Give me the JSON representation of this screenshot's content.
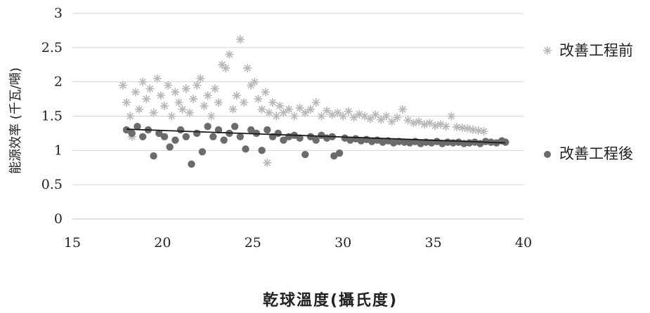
{
  "chart_data": {
    "type": "scatter",
    "title": "",
    "xlabel": "乾球溫度(攝氏度)",
    "ylabel": "能源效率 (千瓦/噸)",
    "xlim": [
      15,
      40
    ],
    "ylim": [
      0,
      3
    ],
    "xticks": [
      "15",
      "20",
      "25",
      "30",
      "35",
      "40"
    ],
    "yticks": [
      "0",
      "0.5",
      "1",
      "1.5",
      "2",
      "2.5",
      "3"
    ],
    "grid": "horizontal",
    "legend_position": "right",
    "series": [
      {
        "name": "改善工程前",
        "marker": "star",
        "color": "#b8b8b8",
        "points": [
          [
            17.8,
            1.95
          ],
          [
            18.0,
            1.7
          ],
          [
            18.2,
            1.5
          ],
          [
            18.3,
            1.2
          ],
          [
            18.5,
            1.85
          ],
          [
            18.7,
            1.6
          ],
          [
            18.9,
            2.0
          ],
          [
            19.1,
            1.75
          ],
          [
            19.3,
            1.9
          ],
          [
            19.5,
            1.55
          ],
          [
            19.7,
            2.05
          ],
          [
            19.9,
            1.8
          ],
          [
            20.1,
            1.65
          ],
          [
            20.3,
            1.95
          ],
          [
            20.5,
            1.5
          ],
          [
            20.7,
            1.85
          ],
          [
            20.9,
            1.7
          ],
          [
            21.1,
            1.6
          ],
          [
            21.3,
            1.9
          ],
          [
            21.5,
            1.55
          ],
          [
            21.7,
            1.75
          ],
          [
            21.9,
            1.95
          ],
          [
            22.1,
            2.05
          ],
          [
            22.3,
            1.65
          ],
          [
            22.5,
            1.8
          ],
          [
            22.7,
            1.5
          ],
          [
            22.9,
            1.9
          ],
          [
            23.1,
            1.7
          ],
          [
            23.3,
            2.25
          ],
          [
            23.5,
            2.2
          ],
          [
            23.7,
            2.4
          ],
          [
            23.9,
            1.6
          ],
          [
            24.1,
            1.8
          ],
          [
            24.3,
            2.62
          ],
          [
            24.5,
            1.7
          ],
          [
            24.7,
            2.2
          ],
          [
            24.9,
            1.95
          ],
          [
            25.1,
            2.0
          ],
          [
            25.3,
            1.75
          ],
          [
            25.5,
            1.6
          ],
          [
            25.7,
            1.85
          ],
          [
            25.9,
            1.55
          ],
          [
            25.8,
            0.82
          ],
          [
            26.1,
            1.7
          ],
          [
            26.3,
            1.5
          ],
          [
            26.5,
            1.65
          ],
          [
            26.7,
            1.55
          ],
          [
            27.0,
            1.6
          ],
          [
            27.3,
            1.5
          ],
          [
            27.6,
            1.62
          ],
          [
            27.9,
            1.55
          ],
          [
            28.2,
            1.6
          ],
          [
            28.5,
            1.7
          ],
          [
            28.8,
            1.5
          ],
          [
            29.1,
            1.58
          ],
          [
            29.4,
            1.52
          ],
          [
            29.7,
            1.55
          ],
          [
            30.0,
            1.5
          ],
          [
            30.3,
            1.57
          ],
          [
            30.6,
            1.48
          ],
          [
            30.9,
            1.53
          ],
          [
            31.2,
            1.5
          ],
          [
            31.5,
            1.46
          ],
          [
            31.8,
            1.52
          ],
          [
            32.1,
            1.45
          ],
          [
            32.4,
            1.5
          ],
          [
            32.7,
            1.42
          ],
          [
            33.0,
            1.48
          ],
          [
            33.3,
            1.6
          ],
          [
            33.6,
            1.44
          ],
          [
            33.9,
            1.4
          ],
          [
            34.2,
            1.42
          ],
          [
            34.5,
            1.38
          ],
          [
            34.8,
            1.4
          ],
          [
            35.1,
            1.36
          ],
          [
            35.4,
            1.38
          ],
          [
            35.7,
            1.35
          ],
          [
            36.0,
            1.5
          ],
          [
            36.3,
            1.34
          ],
          [
            36.6,
            1.33
          ],
          [
            36.9,
            1.32
          ],
          [
            37.2,
            1.3
          ],
          [
            37.5,
            1.29
          ],
          [
            37.8,
            1.28
          ]
        ]
      },
      {
        "name": "改善工程後",
        "marker": "circle",
        "color": "#6b6b6b",
        "points": [
          [
            18.0,
            1.3
          ],
          [
            18.3,
            1.25
          ],
          [
            18.6,
            1.35
          ],
          [
            18.9,
            1.2
          ],
          [
            19.2,
            1.3
          ],
          [
            19.5,
            0.92
          ],
          [
            19.8,
            1.25
          ],
          [
            20.1,
            1.2
          ],
          [
            20.4,
            1.05
          ],
          [
            20.7,
            1.15
          ],
          [
            21.0,
            1.3
          ],
          [
            21.3,
            1.2
          ],
          [
            21.6,
            0.8
          ],
          [
            21.9,
            1.25
          ],
          [
            22.2,
            0.98
          ],
          [
            22.5,
            1.35
          ],
          [
            22.8,
            1.2
          ],
          [
            23.1,
            1.3
          ],
          [
            23.4,
            1.15
          ],
          [
            23.7,
            1.25
          ],
          [
            24.0,
            1.35
          ],
          [
            24.3,
            1.2
          ],
          [
            24.6,
            1.02
          ],
          [
            24.9,
            1.3
          ],
          [
            25.2,
            1.25
          ],
          [
            25.5,
            1.0
          ],
          [
            25.8,
            1.3
          ],
          [
            26.1,
            1.2
          ],
          [
            26.4,
            1.25
          ],
          [
            26.7,
            1.15
          ],
          [
            27.0,
            1.2
          ],
          [
            27.3,
            1.22
          ],
          [
            27.6,
            1.18
          ],
          [
            27.9,
            0.94
          ],
          [
            28.2,
            1.2
          ],
          [
            28.5,
            1.15
          ],
          [
            28.8,
            1.22
          ],
          [
            29.1,
            1.18
          ],
          [
            29.4,
            1.2
          ],
          [
            29.5,
            0.92
          ],
          [
            29.8,
            0.96
          ],
          [
            30.1,
            1.18
          ],
          [
            30.4,
            1.15
          ],
          [
            30.7,
            1.17
          ],
          [
            31.0,
            1.14
          ],
          [
            31.3,
            1.16
          ],
          [
            31.6,
            1.13
          ],
          [
            31.9,
            1.15
          ],
          [
            32.2,
            1.12
          ],
          [
            32.5,
            1.14
          ],
          [
            32.8,
            1.11
          ],
          [
            33.1,
            1.13
          ],
          [
            33.4,
            1.12
          ],
          [
            33.7,
            1.11
          ],
          [
            34.0,
            1.13
          ],
          [
            34.3,
            1.1
          ],
          [
            34.6,
            1.12
          ],
          [
            34.9,
            1.11
          ],
          [
            35.2,
            1.13
          ],
          [
            35.5,
            1.1
          ],
          [
            35.8,
            1.12
          ],
          [
            36.1,
            1.11
          ],
          [
            36.4,
            1.12
          ],
          [
            36.7,
            1.1
          ],
          [
            37.0,
            1.11
          ],
          [
            37.3,
            1.12
          ],
          [
            37.6,
            1.1
          ],
          [
            37.9,
            1.13
          ],
          [
            38.2,
            1.12
          ],
          [
            38.5,
            1.11
          ],
          [
            38.8,
            1.14
          ],
          [
            39.0,
            1.12
          ]
        ]
      }
    ],
    "trendline": {
      "color": "#1a1a1a",
      "from": [
        18.0,
        1.31
      ],
      "to": [
        39.0,
        1.11
      ]
    }
  }
}
